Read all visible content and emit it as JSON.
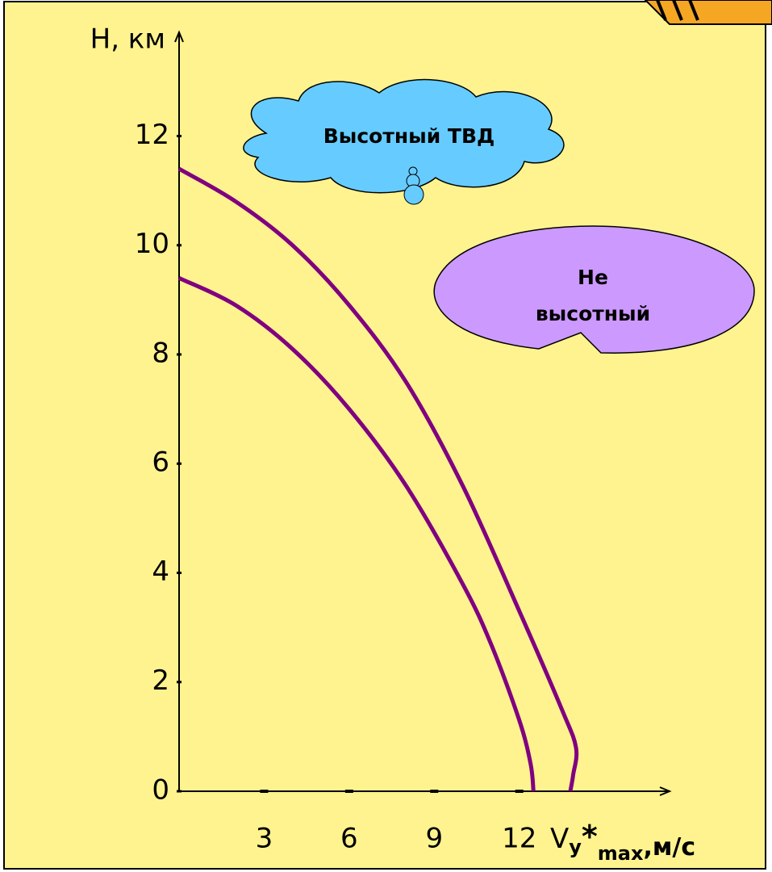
{
  "chart_data": {
    "type": "line",
    "ylabel": "H, км",
    "xlabel": [
      "V",
      "y",
      "*",
      "max",
      ",м/с"
    ],
    "xlim": [
      0,
      17.3
    ],
    "ylim": [
      0,
      13.9
    ],
    "xticks": [
      3,
      6,
      9,
      12
    ],
    "yticks": [
      0,
      2,
      4,
      6,
      8,
      10,
      12
    ],
    "annotations": [
      "Высотный ТВД",
      "Не",
      "высотный"
    ],
    "series": [
      {
        "color": "#800080",
        "x": [
          0,
          2,
          4,
          6,
          8,
          10,
          11,
          12,
          12.4,
          12.5
        ],
        "values": [
          9.4,
          8.9,
          8.1,
          7.0,
          5.6,
          3.8,
          2.7,
          1.3,
          0.5,
          0
        ]
      },
      {
        "color": "#800080",
        "x": [
          0,
          2,
          4,
          6,
          8,
          10,
          12,
          13.5,
          14,
          13.9,
          13.8
        ],
        "values": [
          11.4,
          10.8,
          10.0,
          8.9,
          7.5,
          5.6,
          3.3,
          1.5,
          0.8,
          0.3,
          0
        ]
      }
    ]
  }
}
